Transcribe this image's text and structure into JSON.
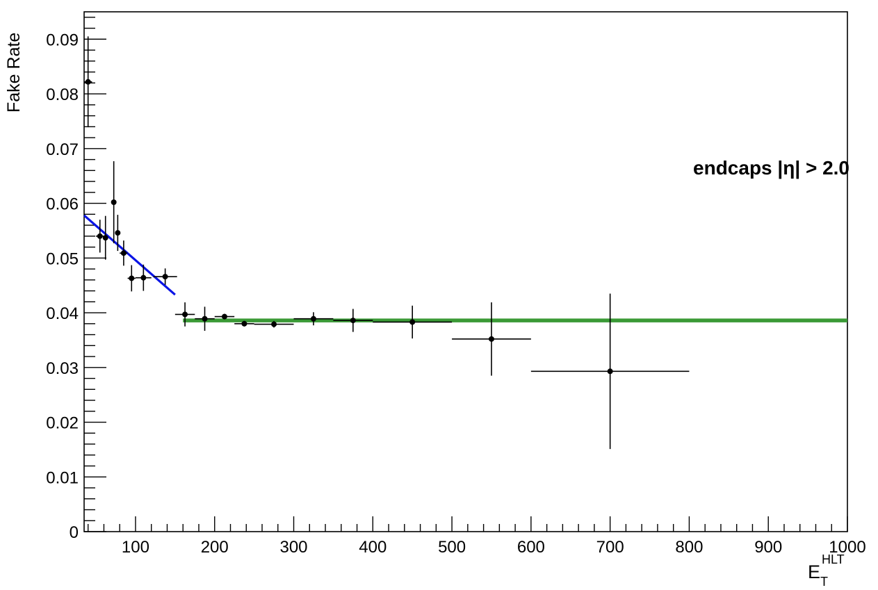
{
  "chart_data": {
    "type": "scatter",
    "title": "",
    "xlabel": {
      "main": "E",
      "sub": "T",
      "sup": "HLT"
    },
    "ylabel": "Fake Rate",
    "xlim": [
      35,
      1000
    ],
    "ylim": [
      0,
      0.095
    ],
    "grid": false,
    "x_ticks": [
      100,
      200,
      300,
      400,
      500,
      600,
      700,
      800,
      900,
      1000
    ],
    "x_tick_labels": [
      "100",
      "200",
      "300",
      "400",
      "500",
      "600",
      "700",
      "800",
      "900",
      "1000"
    ],
    "y_ticks": [
      0,
      0.01,
      0.02,
      0.03,
      0.04,
      0.05,
      0.06,
      0.07,
      0.08,
      0.09
    ],
    "y_tick_labels": [
      "0",
      "0.01",
      "0.02",
      "0.03",
      "0.04",
      "0.05",
      "0.06",
      "0.07",
      "0.08",
      "0.09"
    ],
    "annotation": "endcaps |η| > 2.0",
    "series": [
      {
        "type": "errorbar",
        "color": "#000000",
        "points": [
          {
            "x": 40,
            "xerr": 5,
            "y": 0.0822,
            "yerr": 0.0083
          },
          {
            "x": 55,
            "xerr": 5,
            "y": 0.054,
            "yerr": 0.003
          },
          {
            "x": 62,
            "xerr": 2,
            "y": 0.0537,
            "yerr": 0.004
          },
          {
            "x": 72.5,
            "xerr": 2.5,
            "y": 0.0602,
            "yerr": 0.0075
          },
          {
            "x": 77.5,
            "xerr": 2.5,
            "y": 0.0546,
            "yerr": 0.0033
          },
          {
            "x": 85,
            "xerr": 5,
            "y": 0.0509,
            "yerr": 0.0023
          },
          {
            "x": 95,
            "xerr": 5,
            "y": 0.0463,
            "yerr": 0.0024
          },
          {
            "x": 110,
            "xerr": 10,
            "y": 0.0464,
            "yerr": 0.0024
          },
          {
            "x": 137.5,
            "xerr": 15,
            "y": 0.0466,
            "yerr": 0.0015
          },
          {
            "x": 162.5,
            "xerr": 12.5,
            "y": 0.0397,
            "yerr": 0.0022
          },
          {
            "x": 187.5,
            "xerr": 12.5,
            "y": 0.0389,
            "yerr": 0.0022
          },
          {
            "x": 212.5,
            "xerr": 12.5,
            "y": 0.0393,
            "yerr": 0.0005
          },
          {
            "x": 237.5,
            "xerr": 12.5,
            "y": 0.038,
            "yerr": 0.0005
          },
          {
            "x": 275,
            "xerr": 25,
            "y": 0.0379,
            "yerr": 0.0006
          },
          {
            "x": 325,
            "xerr": 25,
            "y": 0.0389,
            "yerr": 0.0012
          },
          {
            "x": 375,
            "xerr": 25,
            "y": 0.0386,
            "yerr": 0.0021
          },
          {
            "x": 450,
            "xerr": 50,
            "y": 0.0383,
            "yerr": 0.003
          },
          {
            "x": 550,
            "xerr": 50,
            "y": 0.0352,
            "yerr": 0.0067
          },
          {
            "x": 700,
            "xerr": 100,
            "y": 0.0293,
            "yerr": 0.0142
          }
        ]
      },
      {
        "type": "line",
        "color": "#0a14e6",
        "x": [
          35,
          150
        ],
        "y": [
          0.0578,
          0.0433
        ]
      },
      {
        "type": "line",
        "color": "#3a9a36",
        "x": [
          160,
          1000
        ],
        "y": [
          0.0386,
          0.0386
        ]
      }
    ]
  }
}
